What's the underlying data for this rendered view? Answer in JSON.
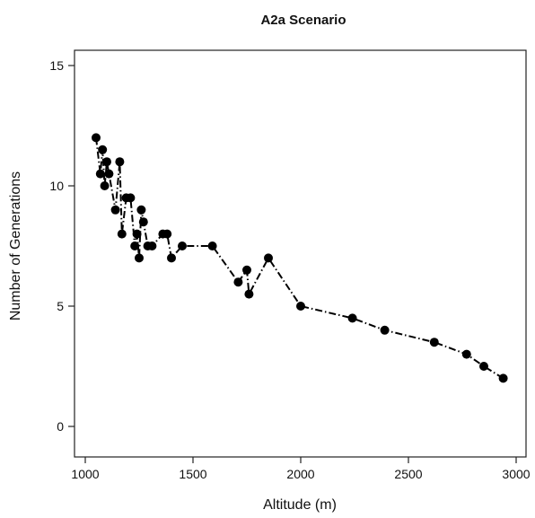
{
  "chart_data": {
    "type": "line",
    "title": "A2a Scenario",
    "xlabel": "Altitude (m)",
    "ylabel": "Number of Generations",
    "xlim": [
      1000,
      3000
    ],
    "ylim": [
      0,
      15
    ],
    "x_ticks": [
      1000,
      1500,
      2000,
      2500,
      3000
    ],
    "y_ticks": [
      0,
      5,
      10,
      15
    ],
    "x_tick_labels": [
      "1000",
      "1500",
      "2000",
      "2500",
      "3000"
    ],
    "y_tick_labels": [
      "0",
      "5",
      "10",
      "15"
    ],
    "grid": false,
    "series": [
      {
        "x": [
          1050,
          1070,
          1080,
          1090,
          1100,
          1110,
          1140,
          1160,
          1170,
          1190,
          1210,
          1230,
          1240,
          1250,
          1260,
          1270,
          1290,
          1310,
          1360,
          1380,
          1400,
          1450,
          1590,
          1710,
          1750,
          1760,
          1850,
          2000,
          2240,
          2390,
          2620,
          2770,
          2850,
          2940
        ],
        "y": [
          12,
          10.5,
          11.5,
          10,
          11,
          10.5,
          9,
          11,
          8,
          9.5,
          9.5,
          7.5,
          8,
          7,
          9,
          8.5,
          7.5,
          7.5,
          8,
          8,
          7,
          7.5,
          7.5,
          6,
          6.5,
          5.5,
          7,
          5,
          4.5,
          4,
          3.5,
          3,
          2.5,
          2
        ],
        "color": "#000000"
      }
    ]
  }
}
